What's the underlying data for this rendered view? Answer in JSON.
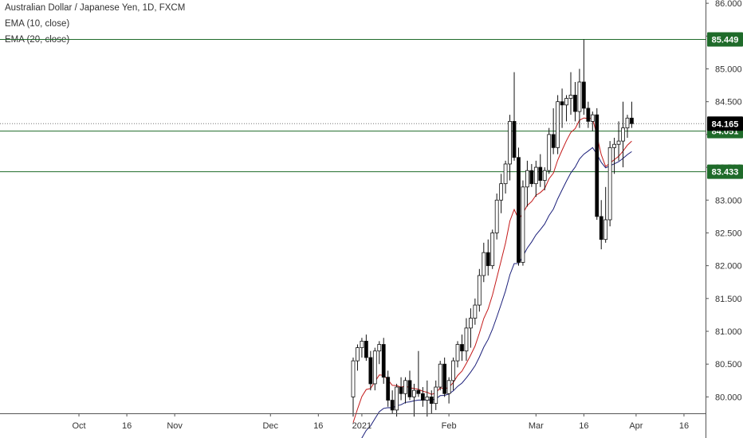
{
  "chart_data": {
    "type": "candlestick",
    "title": "Australian Dollar / Japanese Yen, 1D, FXCM",
    "indicators": [
      {
        "name": "EMA (10, close)",
        "color": "#c41a1a"
      },
      {
        "name": "EMA (20, close)",
        "color": "#1b1f7a"
      }
    ],
    "y_axis": {
      "range": [
        79.75,
        86.05
      ],
      "ticks": [
        "80.000",
        "80.500",
        "81.000",
        "81.500",
        "82.000",
        "82.500",
        "83.000",
        "83.500",
        "84.000",
        "84.500",
        "85.000",
        "85.500",
        "86.000"
      ]
    },
    "x_axis": {
      "ticks": [
        {
          "label": "Oct",
          "bar": -63
        },
        {
          "label": "16",
          "bar": -52
        },
        {
          "label": "Nov",
          "bar": -41
        },
        {
          "label": "Dec",
          "bar": -19
        },
        {
          "label": "16",
          "bar": -8
        },
        {
          "label": "2021",
          "bar": 2
        },
        {
          "label": "Feb",
          "bar": 22
        },
        {
          "label": "Mar",
          "bar": 42
        },
        {
          "label": "16",
          "bar": 53
        },
        {
          "label": "Apr",
          "bar": 65
        },
        {
          "label": "16",
          "bar": 76
        }
      ]
    },
    "levels": [
      {
        "value": 85.449,
        "label": "85.449",
        "color": "#1f6b2a"
      },
      {
        "value": 84.051,
        "label": "84.051",
        "color": "#1f6b2a"
      },
      {
        "value": 83.433,
        "label": "83.433",
        "color": "#1f6b2a"
      }
    ],
    "last_price": {
      "value": 84.165,
      "label": "84.165",
      "color": "#000000"
    },
    "candles": [
      [
        80.0,
        80.6,
        79.7,
        80.55
      ],
      [
        80.55,
        80.8,
        80.4,
        80.75
      ],
      [
        80.75,
        80.9,
        80.6,
        80.85
      ],
      [
        80.85,
        80.95,
        80.55,
        80.6
      ],
      [
        80.6,
        80.7,
        80.1,
        80.2
      ],
      [
        80.2,
        80.75,
        80.1,
        80.7
      ],
      [
        80.7,
        80.85,
        80.5,
        80.8
      ],
      [
        80.8,
        80.9,
        80.2,
        80.3
      ],
      [
        80.3,
        80.4,
        79.85,
        79.95
      ],
      [
        79.95,
        80.1,
        79.75,
        79.8
      ],
      [
        79.8,
        80.2,
        79.7,
        80.15
      ],
      [
        80.15,
        80.3,
        79.95,
        80.05
      ],
      [
        80.05,
        80.3,
        79.9,
        80.25
      ],
      [
        80.25,
        80.4,
        79.95,
        80.0
      ],
      [
        80.0,
        80.2,
        79.7,
        80.1
      ],
      [
        80.1,
        80.7,
        80.0,
        80.05
      ],
      [
        80.05,
        80.15,
        79.85,
        79.95
      ],
      [
        79.95,
        80.25,
        79.7,
        80.0
      ],
      [
        80.0,
        80.1,
        79.75,
        79.9
      ],
      [
        79.9,
        80.25,
        79.8,
        80.15
      ],
      [
        80.15,
        80.55,
        80.1,
        80.5
      ],
      [
        80.5,
        80.6,
        80.0,
        80.05
      ],
      [
        80.05,
        80.3,
        79.9,
        80.25
      ],
      [
        80.25,
        80.6,
        80.1,
        80.55
      ],
      [
        80.55,
        80.85,
        80.45,
        80.8
      ],
      [
        80.8,
        80.95,
        80.55,
        80.7
      ],
      [
        80.7,
        81.2,
        80.55,
        81.05
      ],
      [
        81.05,
        81.35,
        80.75,
        81.2
      ],
      [
        81.2,
        81.5,
        81.1,
        81.4
      ],
      [
        81.4,
        81.95,
        81.3,
        81.85
      ],
      [
        81.85,
        82.35,
        81.75,
        82.2
      ],
      [
        82.2,
        82.4,
        81.85,
        82.0
      ],
      [
        82.0,
        82.55,
        81.95,
        82.5
      ],
      [
        82.5,
        83.1,
        82.4,
        83.0
      ],
      [
        83.0,
        83.4,
        82.8,
        83.25
      ],
      [
        83.25,
        83.6,
        83.1,
        83.55
      ],
      [
        83.55,
        84.3,
        83.3,
        84.2
      ],
      [
        84.2,
        84.95,
        83.6,
        83.65
      ],
      [
        83.65,
        83.8,
        82.0,
        82.05
      ],
      [
        82.05,
        83.3,
        82.0,
        83.2
      ],
      [
        83.2,
        83.6,
        82.9,
        83.45
      ],
      [
        83.45,
        83.55,
        83.2,
        83.25
      ],
      [
        83.25,
        83.6,
        83.05,
        83.5
      ],
      [
        83.5,
        83.7,
        83.2,
        83.3
      ],
      [
        83.3,
        83.5,
        83.15,
        83.45
      ],
      [
        83.45,
        84.1,
        83.4,
        84.0
      ],
      [
        84.0,
        84.4,
        83.7,
        83.8
      ],
      [
        83.8,
        84.6,
        83.7,
        84.5
      ],
      [
        84.5,
        84.7,
        84.1,
        84.45
      ],
      [
        84.45,
        84.6,
        84.2,
        84.55
      ],
      [
        84.55,
        84.95,
        84.3,
        84.6
      ],
      [
        84.6,
        84.8,
        84.2,
        84.35
      ],
      [
        84.35,
        85.0,
        84.1,
        84.8
      ],
      [
        84.8,
        85.45,
        84.3,
        84.4
      ],
      [
        84.4,
        84.5,
        84.1,
        84.2
      ],
      [
        84.2,
        84.35,
        84.05,
        84.3
      ],
      [
        84.3,
        84.4,
        82.7,
        82.75
      ],
      [
        82.75,
        83.0,
        82.25,
        82.4
      ],
      [
        82.4,
        83.2,
        82.35,
        82.7
      ],
      [
        82.7,
        83.9,
        82.6,
        83.8
      ],
      [
        83.8,
        83.95,
        83.4,
        83.85
      ],
      [
        83.85,
        84.2,
        83.6,
        83.9
      ],
      [
        83.9,
        84.5,
        83.5,
        84.1
      ],
      [
        84.1,
        84.3,
        83.95,
        84.25
      ],
      [
        84.25,
        84.5,
        84.1,
        84.165
      ]
    ],
    "ema10_end": 83.85,
    "ema20_end": 83.7
  }
}
